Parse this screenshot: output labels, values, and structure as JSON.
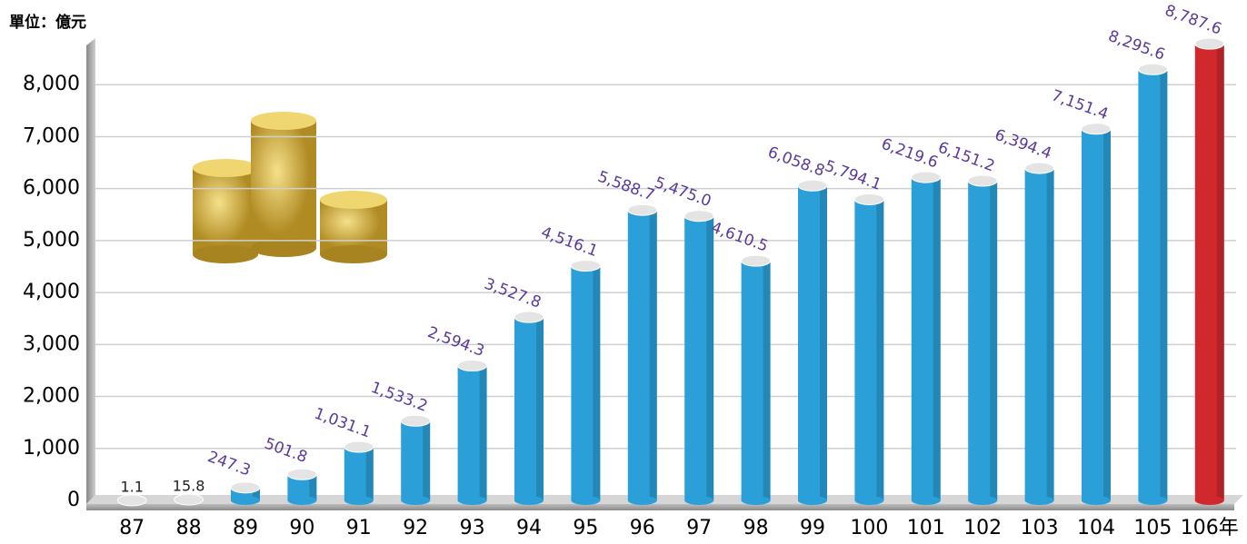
{
  "chart_data": {
    "type": "bar",
    "y_axis_label": "單位：億元",
    "categories": [
      "87",
      "88",
      "89",
      "90",
      "91",
      "92",
      "93",
      "94",
      "95",
      "96",
      "97",
      "98",
      "99",
      "100",
      "101",
      "102",
      "103",
      "104",
      "105",
      "106年"
    ],
    "values": [
      1.1,
      15.8,
      247.3,
      501.8,
      1031.1,
      1533.2,
      2594.3,
      3527.8,
      4516.1,
      5588.7,
      5475.0,
      4610.5,
      6058.8,
      5794.1,
      6219.6,
      6151.2,
      6394.4,
      7151.4,
      8295.6,
      8787.6
    ],
    "value_labels": [
      "1.1",
      "15.8",
      "247.3",
      "501.8",
      "1,031.1",
      "1,533.2",
      "2,594.3",
      "3,527.8",
      "4,516.1",
      "5,588.7",
      "5,475.0",
      "4,610.5",
      "6,058.8",
      "5,794.1",
      "6,219.6",
      "6,151.2",
      "6,394.4",
      "7,151.4",
      "8,295.6",
      "8,787.6"
    ],
    "colors": [
      "#2a9fd8",
      "#2a9fd8",
      "#2a9fd8",
      "#2a9fd8",
      "#2a9fd8",
      "#2a9fd8",
      "#2a9fd8",
      "#2a9fd8",
      "#2a9fd8",
      "#2a9fd8",
      "#2a9fd8",
      "#2a9fd8",
      "#2a9fd8",
      "#2a9fd8",
      "#2a9fd8",
      "#2a9fd8",
      "#2a9fd8",
      "#2a9fd8",
      "#2a9fd8",
      "#d0282d"
    ],
    "ylim": [
      0,
      9000
    ],
    "yticks": [
      0,
      {
        "value": 1000,
        "label": "1,000"
      },
      {
        "value": 2000,
        "label": "2,000"
      },
      {
        "value": 3000,
        "label": "3,000"
      },
      {
        "value": 4000,
        "label": "4,000"
      },
      {
        "value": 5000,
        "label": "5,000"
      },
      {
        "value": 6000,
        "label": "6,000"
      },
      {
        "value": 7000,
        "label": "7,000"
      },
      {
        "value": 8000,
        "label": "8,000"
      }
    ],
    "grid": true
  }
}
